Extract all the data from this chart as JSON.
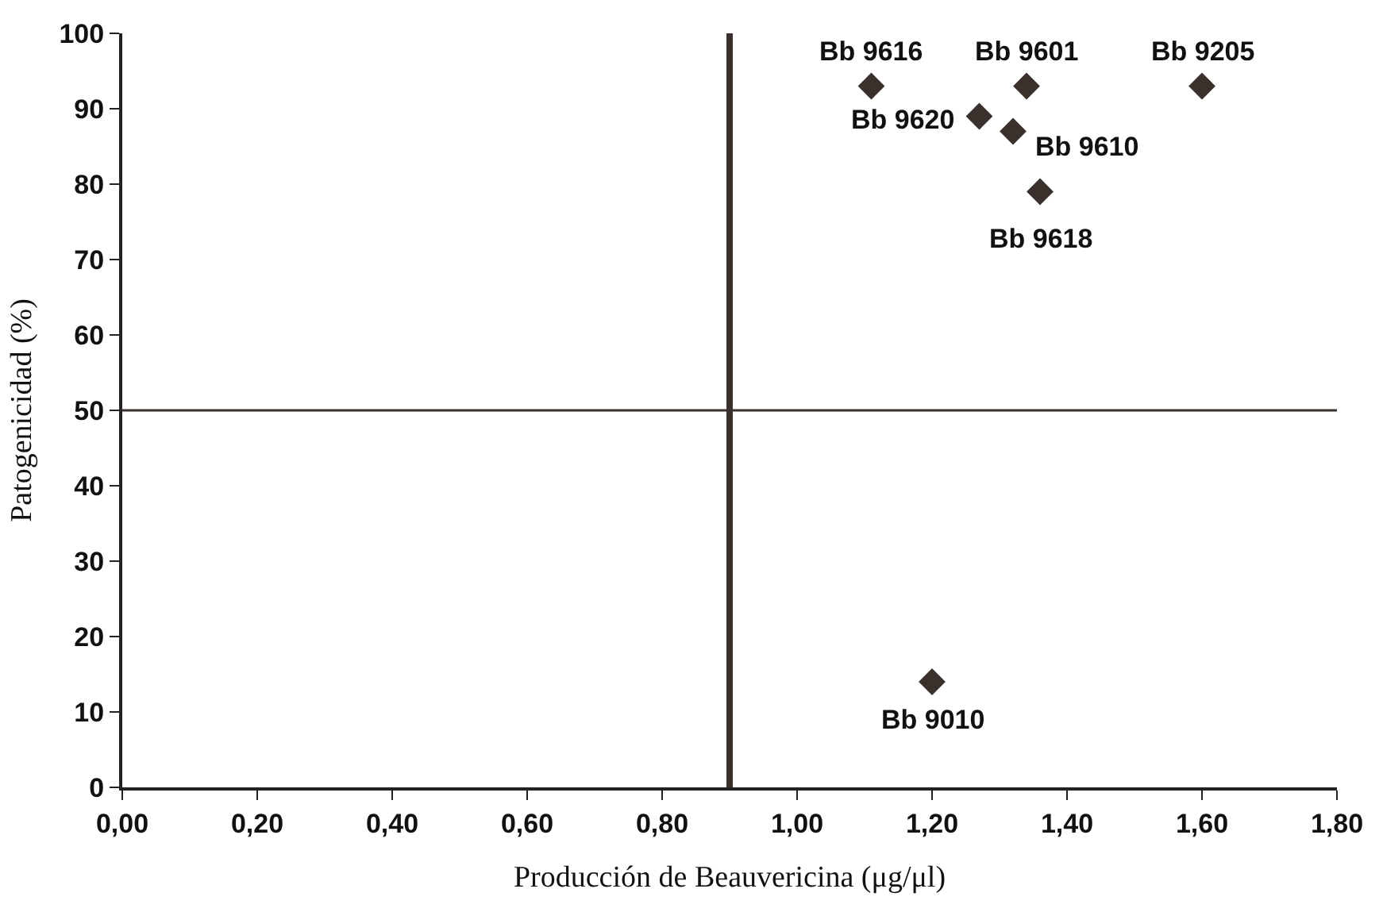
{
  "chart_data": {
    "type": "scatter",
    "xlabel": "Producción de Beauvericina (μg/μl)",
    "ylabel": "Patogenicidad (%)",
    "x": [
      1.11,
      1.34,
      1.6,
      1.27,
      1.32,
      1.36,
      1.2
    ],
    "series": [
      {
        "color": "#3a302c",
        "values": [
          93,
          93,
          93,
          89,
          87,
          79,
          14
        ]
      }
    ],
    "marker": "diamond",
    "xlim": [
      0,
      1.8
    ],
    "xticks": [
      {
        "value": 0,
        "label": "0,00"
      },
      {
        "value": 0.2,
        "label": "0,20"
      },
      {
        "value": 0.4,
        "label": "0,40"
      },
      {
        "value": 0.6,
        "label": "0,60"
      },
      {
        "value": 0.8,
        "label": "0,80"
      },
      {
        "value": 1.0,
        "label": "1,00"
      },
      {
        "value": 1.2,
        "label": "1,20"
      },
      {
        "value": 1.4,
        "label": "1,40"
      },
      {
        "value": 1.6,
        "label": "1,60"
      },
      {
        "value": 1.8,
        "label": "1,80"
      }
    ],
    "ylim": [
      0,
      100
    ],
    "yticks": [
      0,
      10,
      20,
      30,
      40,
      50,
      60,
      70,
      80,
      90,
      100
    ],
    "ref_lines": [
      {
        "axis": "x",
        "value": 0.9,
        "color": "#3a302c"
      },
      {
        "axis": "y",
        "value": 50,
        "color": "#3a302c"
      }
    ],
    "annotations": [
      {
        "text": "Bb 9616",
        "x": 1.11,
        "y": 93
      },
      {
        "text": "Bb 9601",
        "x": 1.34,
        "y": 93
      },
      {
        "text": "Bb 9205",
        "x": 1.6,
        "y": 93
      },
      {
        "text": "Bb 9620",
        "x": 1.27,
        "y": 89
      },
      {
        "text": "Bb 9610",
        "x": 1.32,
        "y": 87
      },
      {
        "text": "Bb 9618",
        "x": 1.36,
        "y": 79
      },
      {
        "text": "Bb 9010",
        "x": 1.2,
        "y": 14
      }
    ]
  }
}
